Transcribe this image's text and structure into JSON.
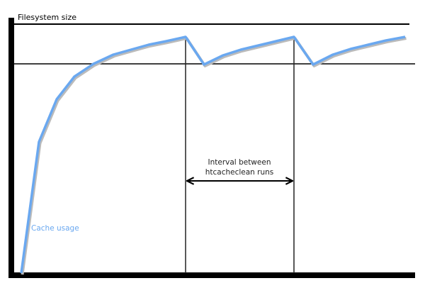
{
  "diagram": {
    "y_axis_label": "Filesystem size",
    "series_label": "Cache usage",
    "interval_label_line1": "Interval between",
    "interval_label_line2": "htcacheclean runs",
    "colors": {
      "cache_usage": "#6aa8f0",
      "axes": "#000000"
    }
  }
}
